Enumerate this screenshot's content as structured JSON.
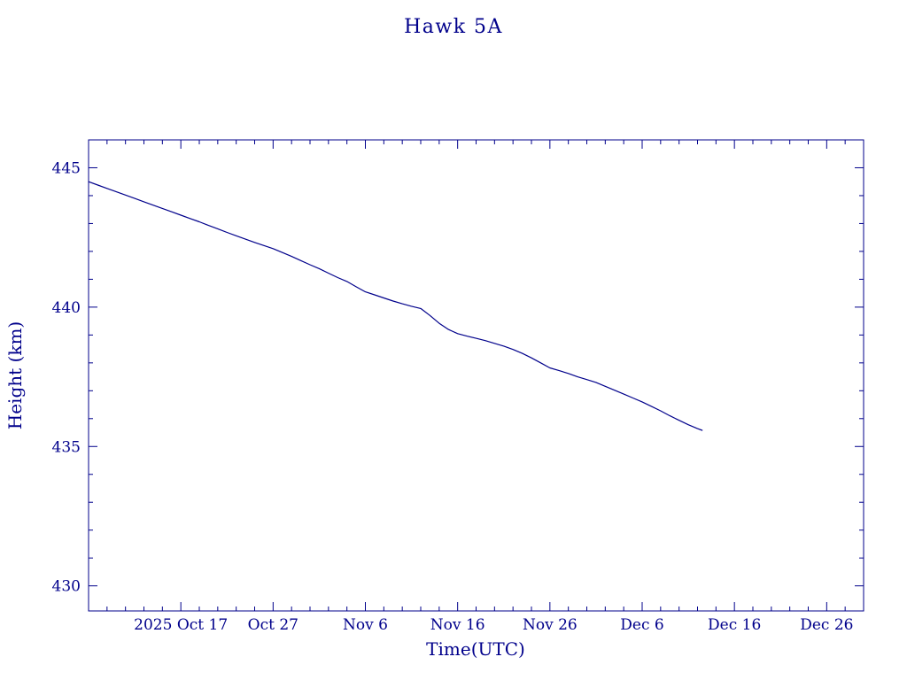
{
  "title": "Hawk 5A",
  "colors": {
    "ink": "#00008B",
    "background": "#FFFFFF"
  },
  "chart_data": {
    "type": "line",
    "title": "Hawk 5A",
    "xlabel": "Time(UTC)",
    "ylabel": "Height (km)",
    "grid": false,
    "legend": null,
    "x_axis": {
      "unit": "days",
      "tick_labels": [
        "2025 Oct 17",
        "Oct 27",
        "Nov 6",
        "Nov 16",
        "Nov 26",
        "Dec 6",
        "Dec 16",
        "Dec 26"
      ],
      "tick_positions": [
        10,
        20,
        30,
        40,
        50,
        60,
        70,
        80
      ],
      "minor_tick_step": 2,
      "range": [
        0,
        84
      ]
    },
    "y_axis": {
      "tick_labels": [
        "430",
        "435",
        "440",
        "445"
      ],
      "tick_positions": [
        430,
        435,
        440,
        445
      ],
      "minor_tick_step": 1,
      "range": [
        429.1,
        446.0
      ]
    },
    "series": [
      {
        "name": "height",
        "color": "#00008B",
        "points": [
          [
            0,
            444.5
          ],
          [
            1,
            444.38
          ],
          [
            2,
            444.26
          ],
          [
            3,
            444.14
          ],
          [
            4,
            444.02
          ],
          [
            5,
            443.9
          ],
          [
            6,
            443.78
          ],
          [
            7,
            443.66
          ],
          [
            8,
            443.54
          ],
          [
            9,
            443.42
          ],
          [
            10,
            443.3
          ],
          [
            11,
            443.18
          ],
          [
            12,
            443.06
          ],
          [
            13,
            442.93
          ],
          [
            14,
            442.81
          ],
          [
            15,
            442.68
          ],
          [
            16,
            442.56
          ],
          [
            17,
            442.44
          ],
          [
            18,
            442.32
          ],
          [
            19,
            442.21
          ],
          [
            20,
            442.1
          ],
          [
            21,
            441.96
          ],
          [
            22,
            441.82
          ],
          [
            23,
            441.67
          ],
          [
            24,
            441.52
          ],
          [
            25,
            441.38
          ],
          [
            26,
            441.22
          ],
          [
            27,
            441.06
          ],
          [
            28,
            440.92
          ],
          [
            29,
            440.73
          ],
          [
            30,
            440.55
          ],
          [
            31,
            440.44
          ],
          [
            32,
            440.33
          ],
          [
            33,
            440.22
          ],
          [
            34,
            440.12
          ],
          [
            35,
            440.03
          ],
          [
            36,
            439.95
          ],
          [
            37,
            439.7
          ],
          [
            38,
            439.42
          ],
          [
            39,
            439.2
          ],
          [
            40,
            439.05
          ],
          [
            41,
            438.96
          ],
          [
            42,
            438.88
          ],
          [
            43,
            438.8
          ],
          [
            44,
            438.7
          ],
          [
            45,
            438.6
          ],
          [
            46,
            438.48
          ],
          [
            47,
            438.34
          ],
          [
            48,
            438.18
          ],
          [
            49,
            438.0
          ],
          [
            50,
            437.82
          ],
          [
            51,
            437.72
          ],
          [
            52,
            437.62
          ],
          [
            53,
            437.5
          ],
          [
            54,
            437.4
          ],
          [
            55,
            437.3
          ],
          [
            56,
            437.16
          ],
          [
            57,
            437.02
          ],
          [
            58,
            436.88
          ],
          [
            59,
            436.74
          ],
          [
            60,
            436.6
          ],
          [
            61,
            436.44
          ],
          [
            62,
            436.28
          ],
          [
            63,
            436.1
          ],
          [
            64,
            435.94
          ],
          [
            65,
            435.78
          ],
          [
            66,
            435.64
          ],
          [
            66.5,
            435.58
          ]
        ]
      }
    ]
  }
}
